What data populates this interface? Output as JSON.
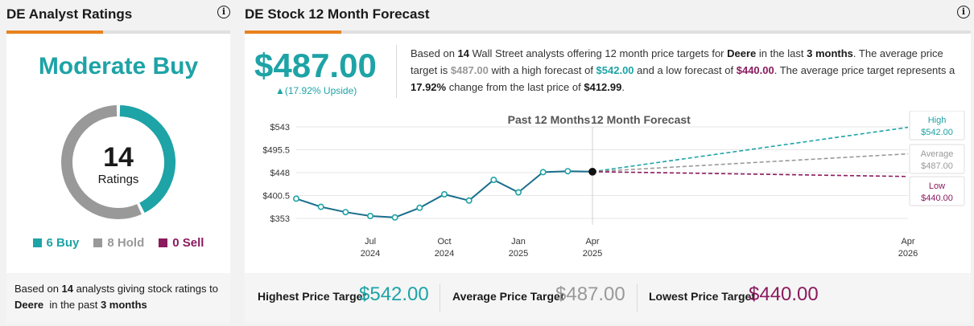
{
  "left": {
    "title": "DE Analyst Ratings",
    "consensus": "Moderate Buy",
    "total": "14",
    "total_label": "Ratings",
    "buy_label": "6 Buy",
    "hold_label": "8 Hold",
    "sell_label": "0 Sell",
    "buy_count": 6,
    "hold_count": 8,
    "sell_count": 0,
    "note_pre": "Based on ",
    "note_n": "14",
    "note_mid": " analysts giving stock ratings to ",
    "note_company": "Deere",
    "note_mid2": "  in the past ",
    "note_period": "3 months"
  },
  "right": {
    "title": "DE Stock 12 Month Forecast",
    "price": "$487.00",
    "upside": "▲(17.92% Upside)",
    "summary": {
      "p1": "Based on ",
      "n": "14",
      "p2": " Wall Street analysts offering 12 month price targets for ",
      "company": "Deere",
      "p3": " in the last ",
      "months": "3 months",
      "p4": ". The average price target is ",
      "avg": "$487.00",
      "p5": " with a high forecast of ",
      "high": "$542.00",
      "p6": " and a low forecast of ",
      "low": "$440.00",
      "p7": ". The average price target represents a ",
      "pct": "17.92%",
      "p8": " change from the last price of ",
      "last": "$412.99",
      "p9": "."
    },
    "footer": {
      "high_label": "Highest Price Target",
      "high_value": "$542.00",
      "avg_label": "Average Price Target",
      "avg_value": "$487.00",
      "low_label": "Lowest Price Target",
      "low_value": "$440.00"
    }
  },
  "colors": {
    "teal": "#1ea3a6",
    "gray": "#999999",
    "purple": "#8b1a5e",
    "orange": "#e8821e"
  },
  "chart_data": {
    "type": "line",
    "title": "",
    "section_labels": [
      "Past 12 Months",
      "12 Month Forecast"
    ],
    "ylim": [
      353,
      543
    ],
    "y_ticks": [
      "$543",
      "$495.5",
      "$448",
      "$400.5",
      "$353"
    ],
    "x_ticks": [
      {
        "month": "Jul",
        "year": "2024"
      },
      {
        "month": "Oct",
        "year": "2024"
      },
      {
        "month": "Jan",
        "year": "2025"
      },
      {
        "month": "Apr",
        "year": "2025"
      },
      {
        "month": "Apr",
        "year": "2026"
      }
    ],
    "history": [
      {
        "date": "2024-04",
        "y": 394
      },
      {
        "date": "2024-05",
        "y": 377
      },
      {
        "date": "2024-06",
        "y": 366
      },
      {
        "date": "2024-07",
        "y": 358
      },
      {
        "date": "2024-08",
        "y": 355
      },
      {
        "date": "2024-09",
        "y": 375
      },
      {
        "date": "2024-10",
        "y": 403
      },
      {
        "date": "2024-11",
        "y": 390
      },
      {
        "date": "2024-12",
        "y": 433
      },
      {
        "date": "2025-01",
        "y": 407
      },
      {
        "date": "2025-02",
        "y": 449
      },
      {
        "date": "2025-03",
        "y": 451
      },
      {
        "date": "2025-04",
        "y": 450
      }
    ],
    "forecast": [
      {
        "name": "High",
        "value": 542.0,
        "label": "$542.00"
      },
      {
        "name": "Average",
        "value": 487.0,
        "label": "$487.00"
      },
      {
        "name": "Low",
        "value": 440.0,
        "label": "$440.00"
      }
    ]
  }
}
